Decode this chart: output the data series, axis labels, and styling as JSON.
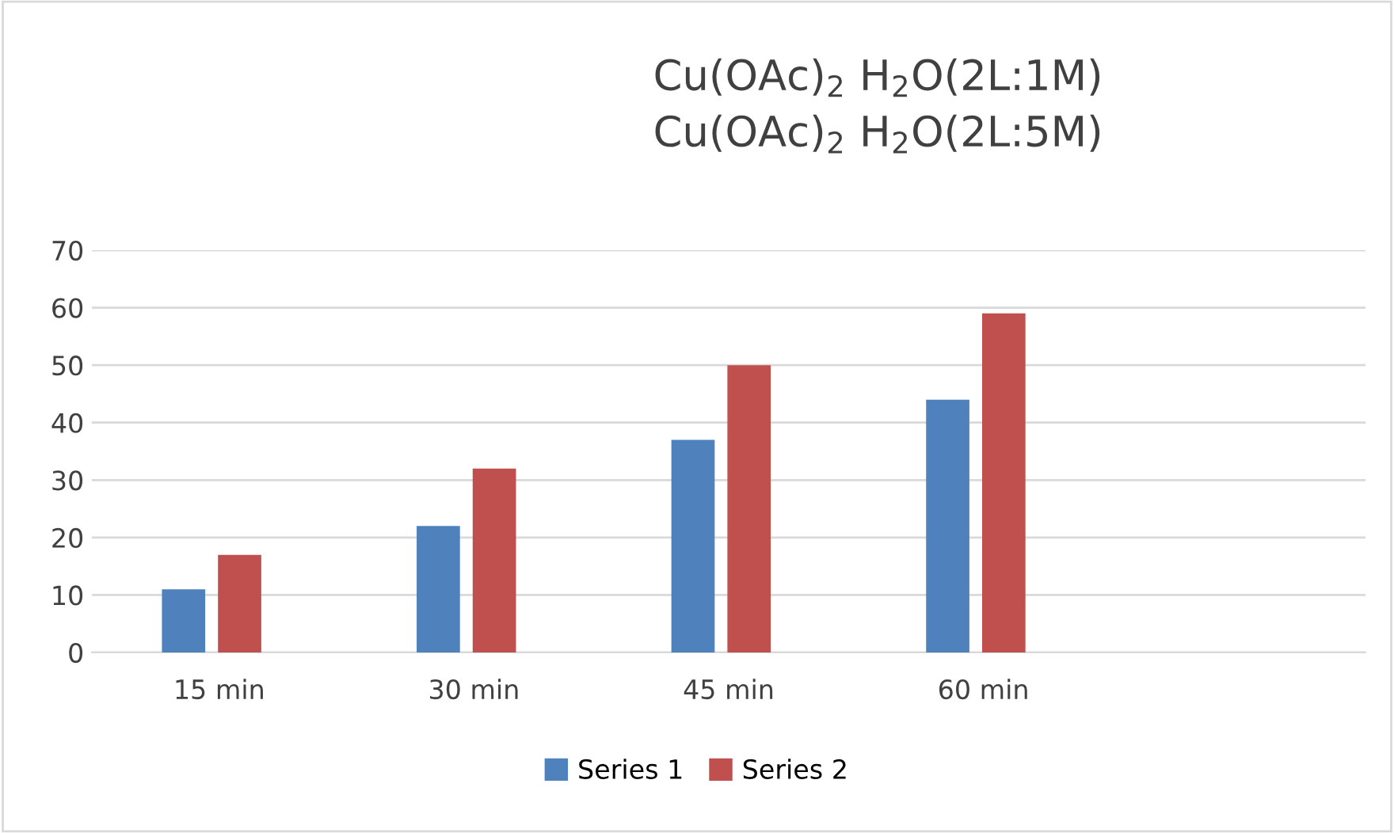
{
  "chart_data": {
    "type": "bar",
    "title": "Cu(OAc)$_{2}$ H$_{2}$O(2L:1M)\nCu(OAc)$_{2}$ H$_{2}$O(2L:5M)",
    "categories": [
      "15 min",
      "30 min",
      "45 min",
      "60 min",
      null
    ],
    "series": [
      {
        "name": "Series 1",
        "color": "#4f81bd",
        "values": [
          11,
          22,
          37,
          44,
          null
        ]
      },
      {
        "name": "Series 2",
        "color": "#c0504d",
        "values": [
          17,
          32,
          50,
          59,
          null
        ]
      }
    ],
    "ylim": [
      0,
      70
    ],
    "yticks": [
      0,
      10,
      20,
      30,
      40,
      50,
      60,
      70
    ],
    "grid": "y",
    "legend": "bottom"
  }
}
